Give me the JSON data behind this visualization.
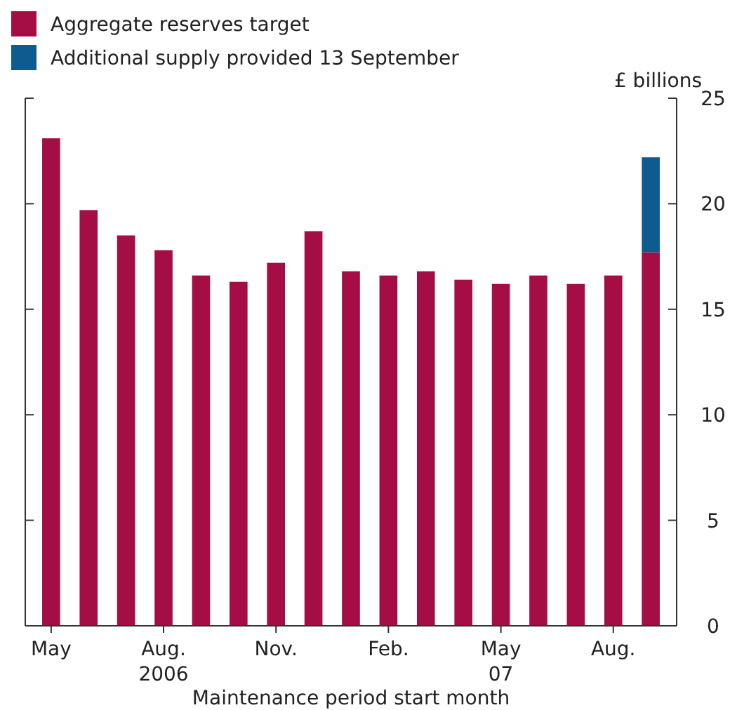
{
  "chart_data": {
    "type": "bar",
    "stacked": true,
    "xlabel": "Maintenance period start month",
    "ylabel": "£ billions",
    "categories": [
      "May",
      null,
      null,
      "Aug.\n2006",
      null,
      null,
      "Nov.",
      null,
      null,
      "Feb.",
      null,
      null,
      "May\n07",
      null,
      null,
      "Aug.",
      null
    ],
    "series": [
      {
        "name": "Aggregate reserves target",
        "color": "#a50d45",
        "values": [
          23.1,
          19.7,
          18.5,
          17.8,
          16.6,
          16.3,
          17.2,
          18.7,
          16.8,
          16.6,
          16.8,
          16.4,
          16.2,
          16.6,
          16.2,
          16.6,
          17.7
        ]
      },
      {
        "name": "Additional supply provided 13 September",
        "color": "#0f5a8f",
        "values": [
          null,
          null,
          null,
          null,
          null,
          null,
          null,
          null,
          null,
          null,
          null,
          null,
          null,
          null,
          null,
          null,
          4.5
        ]
      }
    ],
    "ylim": [
      0,
      25
    ],
    "yticks": [
      0,
      5,
      10,
      15,
      20,
      25
    ],
    "grid": false,
    "legend": "top left"
  }
}
